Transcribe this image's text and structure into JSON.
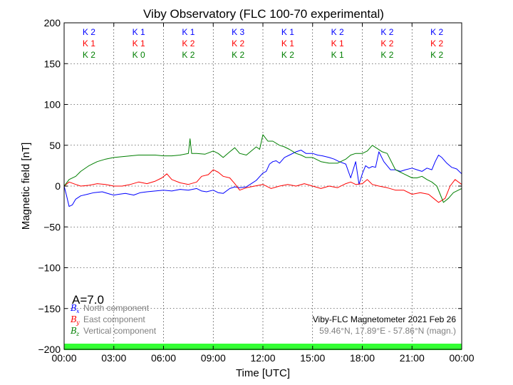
{
  "chart_data": {
    "type": "line",
    "title": "Viby Observatory (FLC 100-70 experimental)",
    "xlabel": "Time [UTC]",
    "ylabel": "Magnetic field [nT]",
    "xlim": [
      0,
      24
    ],
    "ylim": [
      -200,
      200
    ],
    "x_ticks": [
      0,
      3,
      6,
      9,
      12,
      15,
      18,
      21,
      24
    ],
    "x_tick_labels": [
      "00:00",
      "03:00",
      "06:00",
      "09:00",
      "12:00",
      "15:00",
      "18:00",
      "21:00",
      "00:00"
    ],
    "y_ticks": [
      200,
      150,
      100,
      50,
      0,
      -50,
      -100,
      -150,
      -200
    ],
    "y_tick_labels": [
      "200",
      "150",
      "100",
      "50",
      "0",
      "−50",
      "−100",
      "−150",
      "−200"
    ],
    "grid": true,
    "activity_index": "A=7.0",
    "info_line1": "Viby-FLC Magnetometer 2021 Feb 26",
    "info_line2": "59.46°N, 17.89°E - 57.86°N (magn.)",
    "status_bar_color": "#33ff33",
    "k_indices": [
      {
        "color": "#0000ff",
        "labels": [
          "K 2",
          "K 1",
          "K 1",
          "K 3",
          "K 1",
          "K 2",
          "K 2",
          "K 2"
        ]
      },
      {
        "color": "#ff0000",
        "labels": [
          "K 1",
          "K 1",
          "K 2",
          "K 2",
          "K 1",
          "K 1",
          "K 2",
          "K 2"
        ]
      },
      {
        "color": "#007f00",
        "labels": [
          "K 2",
          "K 0",
          "K 2",
          "K 2",
          "K 2",
          "K 1",
          "K 2",
          "K 2"
        ]
      }
    ],
    "legend": [
      {
        "symbol": "B",
        "sub": "x",
        "text": "North component",
        "color": "#0000ff"
      },
      {
        "symbol": "B",
        "sub": "y",
        "text": "East component",
        "color": "#ff0000"
      },
      {
        "symbol": "B",
        "sub": "z",
        "text": "Vertical component",
        "color": "#007f00"
      }
    ],
    "series": [
      {
        "name": "North component",
        "color": "#0000ff",
        "x": [
          0,
          0.15,
          0.3,
          0.5,
          0.7,
          1,
          1.4,
          1.8,
          2.3,
          2.8,
          3,
          3.3,
          3.7,
          4.2,
          4.6,
          5,
          5.5,
          6,
          6.5,
          7,
          7.5,
          8,
          8.3,
          8.6,
          9,
          9.3,
          9.6,
          10,
          10.3,
          10.6,
          11,
          11.3,
          11.6,
          12,
          12.2,
          12.4,
          12.6,
          12.8,
          13,
          13.3,
          13.6,
          14,
          14.3,
          14.6,
          15,
          15.3,
          15.6,
          16,
          16.3,
          16.6,
          17,
          17.3,
          17.6,
          17.8,
          18,
          18.2,
          18.4,
          18.6,
          18.8,
          19,
          19.3,
          19.5,
          19.7,
          20,
          20.3,
          20.6,
          21,
          21.3,
          21.6,
          21.9,
          22.2,
          22.4,
          22.6,
          22.8,
          23.1,
          23.4,
          23.7,
          24
        ],
        "y": [
          0,
          -12,
          -25,
          -23,
          -16,
          -12,
          -10,
          -8,
          -7,
          -10,
          -11,
          -10,
          -9,
          -11,
          -8,
          -7,
          -6,
          -5,
          -6,
          -4,
          -5,
          -3,
          -6,
          -7,
          -5,
          -8,
          -9,
          -3,
          -1,
          -2,
          -1,
          3,
          7,
          16,
          18,
          27,
          30,
          31,
          28,
          35,
          38,
          42,
          44,
          40,
          40,
          38,
          37,
          35,
          33,
          30,
          27,
          10,
          30,
          2,
          15,
          25,
          22,
          24,
          23,
          42,
          30,
          25,
          20,
          20,
          18,
          20,
          22,
          20,
          18,
          22,
          20,
          30,
          38,
          35,
          28,
          23,
          21,
          15
        ]
      },
      {
        "name": "East component",
        "color": "#ff0000",
        "x": [
          0,
          0.3,
          0.7,
          1,
          1.5,
          2,
          2.5,
          3,
          3.5,
          4,
          4.5,
          5,
          5.5,
          5.9,
          6.2,
          6.5,
          7,
          7.5,
          8,
          8.3,
          8.7,
          9,
          9.3,
          9.6,
          10,
          10.3,
          10.6,
          11,
          11.5,
          12,
          12.5,
          13,
          13.5,
          14,
          14.5,
          15,
          15.5,
          16,
          16.5,
          17,
          17.3,
          17.6,
          18,
          18.3,
          18.6,
          19,
          19.5,
          20,
          20.5,
          21,
          21.5,
          22,
          22.3,
          22.6,
          23,
          23.3,
          23.6,
          24
        ],
        "y": [
          0,
          5,
          2,
          0,
          1,
          3,
          2,
          0,
          0,
          2,
          5,
          3,
          6,
          10,
          15,
          8,
          4,
          2,
          5,
          12,
          14,
          20,
          17,
          12,
          10,
          3,
          -5,
          -2,
          0,
          2,
          -3,
          0,
          2,
          0,
          3,
          0,
          -3,
          0,
          -2,
          3,
          5,
          2,
          3,
          8,
          2,
          0,
          -2,
          -5,
          -5,
          -10,
          -8,
          -10,
          -15,
          -20,
          -15,
          0,
          8,
          2
        ]
      },
      {
        "name": "Vertical component",
        "color": "#007f00",
        "x": [
          0,
          0.3,
          0.7,
          1,
          1.5,
          2,
          2.5,
          3,
          3.5,
          4,
          4.5,
          5,
          5.5,
          6,
          6.5,
          7,
          7.5,
          7.6,
          7.7,
          8,
          8.5,
          9,
          9.3,
          9.6,
          10,
          10.3,
          10.6,
          11,
          11.3,
          11.6,
          11.8,
          12,
          12.3,
          12.6,
          13,
          13.3,
          13.6,
          14,
          14.3,
          14.6,
          15,
          15.5,
          16,
          16.5,
          17,
          17.3,
          17.6,
          18,
          18.3,
          18.6,
          18.9,
          19.2,
          19.5,
          20,
          20.5,
          21,
          21.3,
          21.6,
          21.9,
          22.2,
          22.5,
          22.7,
          22.9,
          23.2,
          23.5,
          23.8,
          24
        ],
        "y": [
          0,
          8,
          12,
          18,
          25,
          30,
          33,
          35,
          36,
          37,
          38,
          38,
          38,
          37,
          37,
          38,
          40,
          58,
          40,
          40,
          39,
          43,
          40,
          35,
          42,
          47,
          40,
          38,
          43,
          48,
          45,
          63,
          55,
          55,
          50,
          48,
          45,
          40,
          38,
          35,
          35,
          30,
          28,
          28,
          33,
          38,
          40,
          40,
          43,
          50,
          46,
          42,
          40,
          20,
          15,
          10,
          10,
          12,
          8,
          5,
          0,
          -10,
          -20,
          -15,
          -8,
          -5,
          -3
        ]
      }
    ]
  }
}
